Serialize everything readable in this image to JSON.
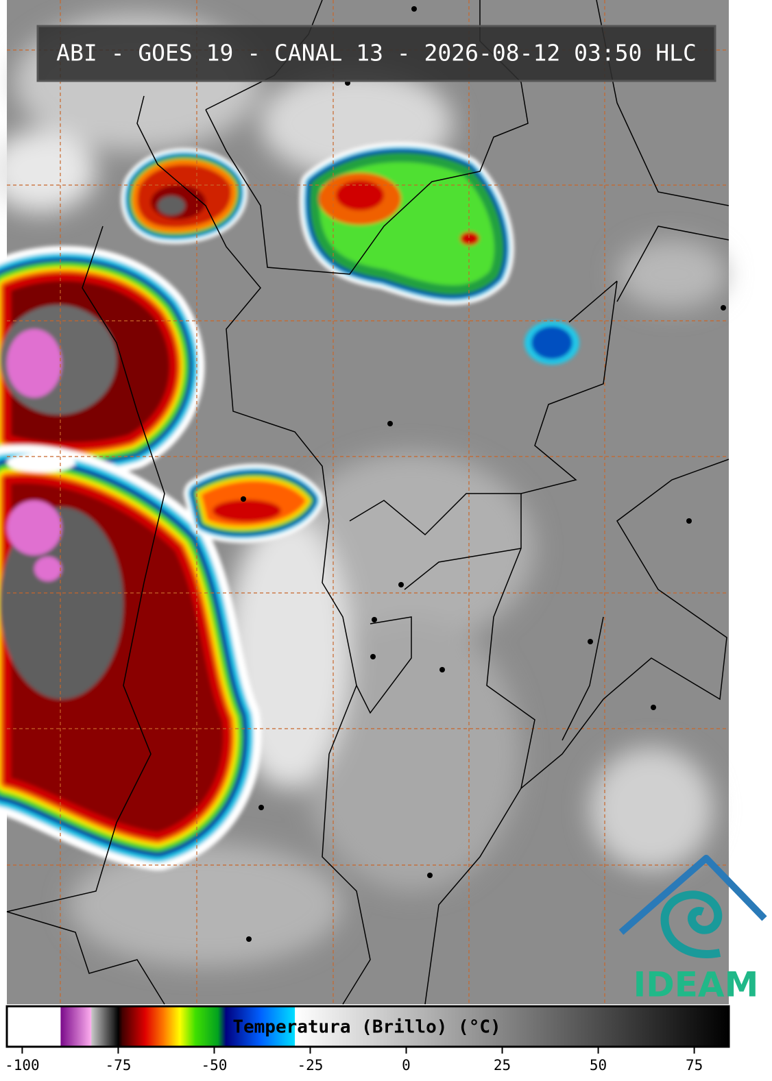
{
  "header": {
    "title": "ABI - GOES 19 - CANAL 13 - 2026-08-12 03:50 HLC"
  },
  "colorbar": {
    "label": "Temperatura (Brillo) (°C)",
    "xlim": [
      -104,
      84
    ],
    "xticks": [
      -100,
      -75,
      -50,
      -25,
      0,
      25,
      50,
      75
    ],
    "stops": [
      {
        "value": -104,
        "color": "#ffffff"
      },
      {
        "value": -90,
        "color": "#ffffff"
      },
      {
        "value": -90,
        "color": "#7a0a8a"
      },
      {
        "value": -82,
        "color": "#ffb0f0"
      },
      {
        "value": -82,
        "color": "#c8c8c8"
      },
      {
        "value": -76,
        "color": "#202020"
      },
      {
        "value": -75,
        "color": "#000000"
      },
      {
        "value": -74,
        "color": "#400000"
      },
      {
        "value": -68,
        "color": "#e00000"
      },
      {
        "value": -63,
        "color": "#ff8000"
      },
      {
        "value": -59,
        "color": "#ffff00"
      },
      {
        "value": -55,
        "color": "#40e000"
      },
      {
        "value": -49,
        "color": "#00a020"
      },
      {
        "value": -47,
        "color": "#000080"
      },
      {
        "value": -38,
        "color": "#0060ff"
      },
      {
        "value": -29,
        "color": "#00e0ff"
      },
      {
        "value": -29,
        "color": "#ffffff"
      },
      {
        "value": 84,
        "color": "#000000"
      }
    ]
  },
  "logo": {
    "text": "IDEAM"
  }
}
